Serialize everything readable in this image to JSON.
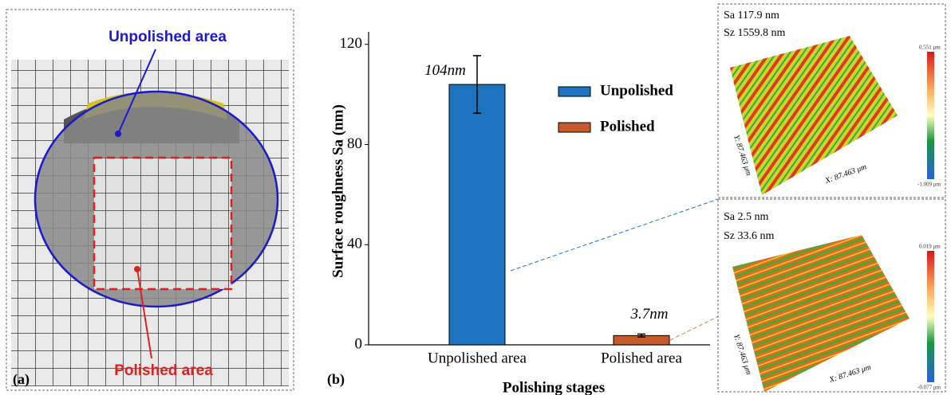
{
  "chart_data": {
    "type": "bar",
    "panel_label": "(b)",
    "x_label": "Polishing stages",
    "y_label": "Surface roughness Sa (nm)",
    "categories": [
      "Unpolished area",
      "Polished area"
    ],
    "series": [
      {
        "name": "Unpolished",
        "color": "#1e73be",
        "values": [
          104,
          null
        ],
        "errors": [
          11.5,
          null
        ],
        "value_labels": [
          "104nm",
          null
        ]
      },
      {
        "name": "Polished",
        "color": "#c45a2c",
        "values": [
          null,
          3.7
        ],
        "errors": [
          null,
          0.6
        ],
        "value_labels": [
          null,
          "3.7nm"
        ]
      }
    ],
    "ylim": [
      0,
      125
    ],
    "yticks": [
      0,
      40,
      80,
      120
    ],
    "grid": false,
    "legend": "upper right"
  },
  "panel_a": {
    "label": "(a)",
    "unpolished_label": "Unpolished area",
    "polished_label": "Polished area"
  },
  "surfaces": [
    {
      "sa": "Sa 117.9 nm",
      "sz": "Sz 1559.8 nm",
      "y_axis": "Y: 87.463 μm",
      "x_axis": "X: 87.463 μm",
      "scale_max": "0.551 μm",
      "scale_min": "-1.009 μm"
    },
    {
      "sa": "Sa 2.5 nm",
      "sz": "Sz 33.6 nm",
      "y_axis": "Y: 87.463 μm",
      "x_axis": "X: 87.463 μm",
      "scale_max": "0.019 μm",
      "scale_min": "-0.077 μm"
    }
  ]
}
